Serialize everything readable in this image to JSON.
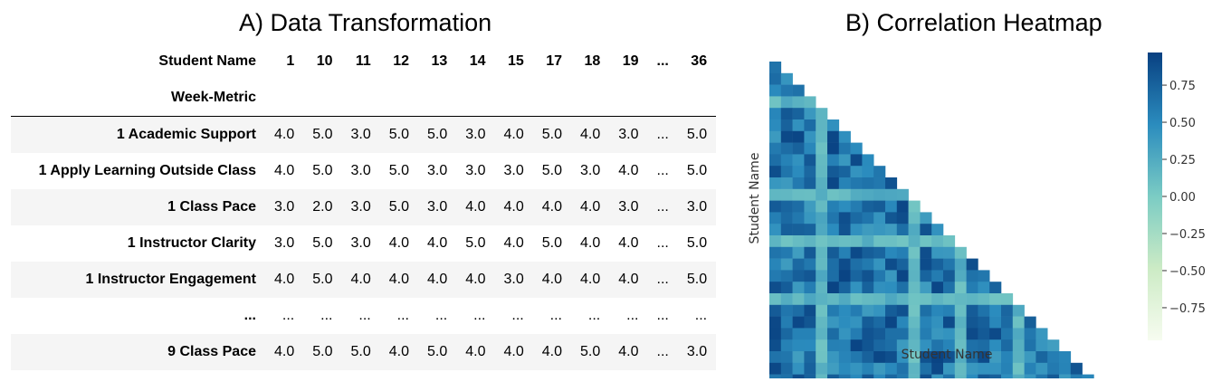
{
  "panel_a": {
    "title": "A) Data Transformation",
    "columns_label": "Student Name",
    "index_label": "Week-Metric",
    "columns": [
      "1",
      "10",
      "11",
      "12",
      "13",
      "14",
      "15",
      "17",
      "18",
      "19",
      "...",
      "36"
    ],
    "rows": [
      {
        "label": "1 Academic Support",
        "values": [
          "4.0",
          "5.0",
          "3.0",
          "5.0",
          "5.0",
          "3.0",
          "4.0",
          "5.0",
          "4.0",
          "3.0",
          "...",
          "5.0"
        ]
      },
      {
        "label": "1 Apply Learning Outside Class",
        "values": [
          "4.0",
          "5.0",
          "3.0",
          "5.0",
          "3.0",
          "3.0",
          "3.0",
          "5.0",
          "3.0",
          "4.0",
          "...",
          "5.0"
        ]
      },
      {
        "label": "1 Class Pace",
        "values": [
          "3.0",
          "2.0",
          "3.0",
          "5.0",
          "3.0",
          "4.0",
          "4.0",
          "4.0",
          "4.0",
          "3.0",
          "...",
          "3.0"
        ]
      },
      {
        "label": "1 Instructor Clarity",
        "values": [
          "3.0",
          "5.0",
          "3.0",
          "4.0",
          "4.0",
          "5.0",
          "4.0",
          "5.0",
          "4.0",
          "4.0",
          "...",
          "5.0"
        ]
      },
      {
        "label": "1 Instructor Engagement",
        "values": [
          "4.0",
          "5.0",
          "4.0",
          "4.0",
          "4.0",
          "4.0",
          "3.0",
          "4.0",
          "4.0",
          "4.0",
          "...",
          "5.0"
        ]
      },
      {
        "label": "...",
        "values": [
          "...",
          "...",
          "...",
          "...",
          "...",
          "...",
          "...",
          "...",
          "...",
          "...",
          "...",
          "..."
        ]
      },
      {
        "label": "9 Class Pace",
        "values": [
          "4.0",
          "5.0",
          "5.0",
          "4.0",
          "5.0",
          "4.0",
          "4.0",
          "4.0",
          "5.0",
          "4.0",
          "...",
          "3.0"
        ]
      }
    ]
  },
  "chart_data": {
    "type": "heatmap",
    "title": "B) Correlation Heatmap",
    "xlabel": "Student Name",
    "ylabel": "Student Name",
    "mask": "upper-triangle",
    "n": 30,
    "colormap": "GnBu",
    "colormap_stops": [
      "#f7fcf0",
      "#ccebc5",
      "#7bccc4",
      "#2b8cbe",
      "#084081"
    ],
    "vmin": -0.97,
    "vmax": 0.97,
    "colorbar_ticks": [
      0.75,
      0.5,
      0.25,
      0.0,
      -0.25,
      -0.5,
      -0.75
    ],
    "colorbar_tick_labels": [
      "0.75",
      "0.50",
      "0.25",
      "0.00",
      "−0.25",
      "−0.50",
      "−0.75"
    ],
    "low_correlation_students": [
      4,
      12,
      16,
      21
    ]
  }
}
